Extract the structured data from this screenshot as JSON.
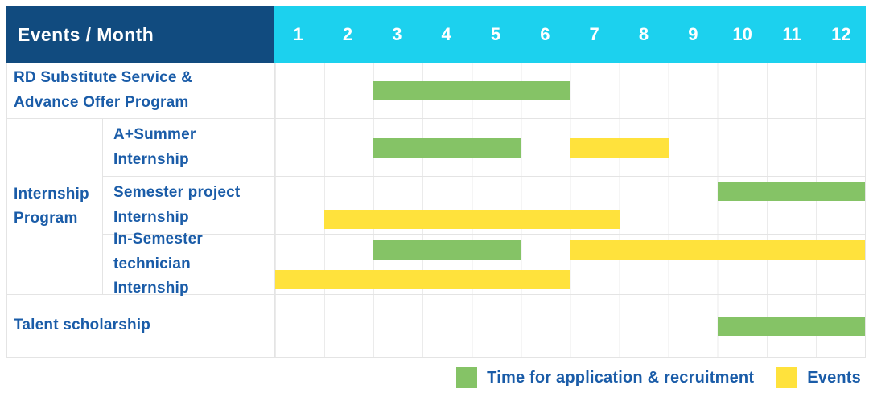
{
  "header": {
    "corner_label": "Events / Month"
  },
  "colors": {
    "navy": "#114B7F",
    "cyan": "#1CD1EE",
    "green": "#85C366",
    "yellow": "#FFE23C",
    "label_text": "#1A5CA8",
    "header_text": "#FFFFFF",
    "border": "#E4E4E4",
    "grid": "#EBEBEB",
    "background": "#FFFFFF"
  },
  "groups": [
    {
      "name": "Internship Program",
      "name_lines": [
        "Internship",
        "Program"
      ]
    }
  ],
  "chart_data": {
    "type": "gantt",
    "x_axis": {
      "label": "Month",
      "ticks": [
        "1",
        "2",
        "3",
        "4",
        "5",
        "6",
        "7",
        "8",
        "9",
        "10",
        "11",
        "12"
      ],
      "range": [
        1,
        12
      ]
    },
    "legend_position": "bottom-right",
    "grid": true,
    "series": [
      {
        "key": "application",
        "name": "Time for application & recruitment",
        "color": "#85C366"
      },
      {
        "key": "events",
        "name": "Events",
        "color": "#FFE23C"
      }
    ],
    "tasks": [
      {
        "group": "",
        "name": "RD Substitute Service & Advance Offer Program",
        "name_lines": [
          "RD Substitute Service &",
          "Advance Offer Program"
        ],
        "lines": 1,
        "bars": [
          {
            "series": "application",
            "start_month": 3,
            "end_month": 6,
            "line": 1
          }
        ]
      },
      {
        "group": "Internship Program",
        "name": "A+Summer Internship",
        "name_lines": [
          "A+Summer",
          "Internship"
        ],
        "lines": 1,
        "bars": [
          {
            "series": "application",
            "start_month": 3,
            "end_month": 5,
            "line": 1
          },
          {
            "series": "events",
            "start_month": 7,
            "end_month": 8,
            "line": 1
          }
        ]
      },
      {
        "group": "Internship Program",
        "name": "Semester project Internship",
        "name_lines": [
          "Semester project",
          "Internship"
        ],
        "lines": 2,
        "bars": [
          {
            "series": "application",
            "start_month": 10,
            "end_month": 12,
            "line": 1
          },
          {
            "series": "events",
            "start_month": 2,
            "end_month": 7,
            "line": 2
          }
        ]
      },
      {
        "group": "Internship Program",
        "name": "In-Semester technician Internship",
        "name_lines": [
          "In-Semester",
          "technician Internship"
        ],
        "lines": 2,
        "bars": [
          {
            "series": "application",
            "start_month": 3,
            "end_month": 5,
            "line": 1
          },
          {
            "series": "events",
            "start_month": 7,
            "end_month": 12,
            "line": 1
          },
          {
            "series": "events",
            "start_month": 1,
            "end_month": 6,
            "line": 2
          }
        ]
      },
      {
        "group": "",
        "name": "Talent scholarship",
        "name_lines": [
          "Talent scholarship"
        ],
        "lines": 1,
        "bars": [
          {
            "series": "application",
            "start_month": 10,
            "end_month": 12,
            "line": 1
          }
        ]
      }
    ]
  }
}
